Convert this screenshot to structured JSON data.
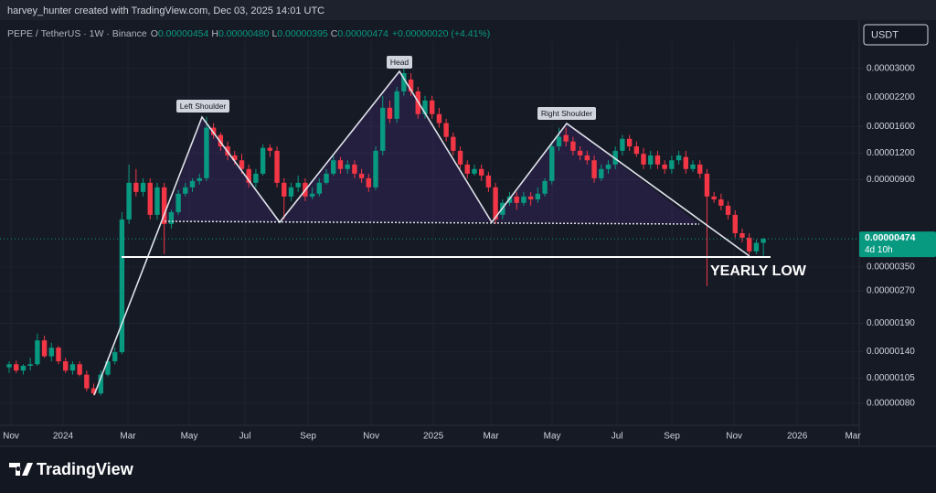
{
  "header": {
    "credit": "harvey_hunter created with TradingView.com, Dec 03, 2025 14:01 UTC",
    "symbol": "PEPE / TetherUS · 1W · Binance",
    "legend": [
      {
        "key": "O",
        "text": "0.00000454"
      },
      {
        "key": "H",
        "text": "0.00000480"
      },
      {
        "key": "L",
        "text": "0.00000395"
      },
      {
        "key": "C",
        "text": "0.00000474"
      }
    ],
    "change": "+0.00000020 (+4.41%)",
    "currency": "USDT"
  },
  "footer": {
    "brand": "TradingView"
  },
  "chart_data": {
    "type": "candlestick",
    "up_color": "#089981",
    "down_color": "#f23645",
    "log_scale": true,
    "grid": true,
    "open": [
      1.18e-06,
      1.22e-06,
      1.14e-06,
      1.2e-06,
      1.22e-06,
      1.58e-06,
      1.33e-06,
      1.46e-06,
      1.26e-06,
      1.14e-06,
      1.22e-06,
      1.09e-06,
      9.4e-07,
      8.9e-07,
      1.09e-06,
      1.26e-06,
      1.39e-06,
      5.85e-06,
      8.7e-06,
      7.88e-06,
      8.7e-06,
      6.15e-06,
      8.28e-06,
      5.57e-06,
      6.33e-06,
      7.73e-06,
      8.28e-06,
      8.87e-06,
      9.14e-06,
      1.58e-05,
      1.46e-05,
      1.29e-05,
      1.17e-05,
      1.11e-05,
      1.01e-05,
      8.7e-06,
      9.6e-06,
      1.27e-05,
      1.23e-05,
      8.7e-06,
      7.5e-06,
      8.28e-06,
      8.7e-06,
      7.5e-06,
      7.73e-06,
      8.7e-06,
      9.6e-06,
      1.11e-05,
      1.01e-05,
      1.06e-05,
      9.6e-06,
      9.14e-06,
      8.28e-06,
      1.23e-05,
      1.96e-05,
      1.74e-05,
      2.34e-05,
      2.66e-05,
      2.34e-05,
      1.83e-05,
      2.12e-05,
      1.83e-05,
      1.66e-05,
      1.43e-05,
      1.23e-05,
      1.06e-05,
      9.6e-06,
      1.01e-05,
      9.41e-06,
      8.28e-06,
      6.15e-06,
      7e-06,
      7.5e-06,
      7e-06,
      7.5e-06,
      7.27e-06,
      7.73e-06,
      8.87e-06,
      1.29e-05,
      1.46e-05,
      1.36e-05,
      1.23e-05,
      1.17e-05,
      1.11e-05,
      9.14e-06,
      1.01e-05,
      1.06e-05,
      1.23e-05,
      1.4e-05,
      1.29e-05,
      1.19e-05,
      1.06e-05,
      1.17e-05,
      1.06e-05,
      1.01e-05,
      1.11e-05,
      1.15e-05,
      1.01e-05,
      1.06e-05,
      9.6e-06,
      7.5e-06,
      7.27e-06,
      6.79e-06,
      6.15e-06,
      5.04e-06,
      4.8e-06,
      4.14e-06,
      4.54e-06
    ],
    "high": [
      1.26e-06,
      1.27e-06,
      1.22e-06,
      1.31e-06,
      1.7e-06,
      1.66e-06,
      1.54e-06,
      1.49e-06,
      1.31e-06,
      1.26e-06,
      1.26e-06,
      1.14e-06,
      9.9e-07,
      1.14e-06,
      1.31e-06,
      1.46e-06,
      6.33e-06,
      1.06e-05,
      1.01e-05,
      9.14e-06,
      9.14e-06,
      8.7e-06,
      8.7e-06,
      6.5e-06,
      8.04e-06,
      8.7e-06,
      9.14e-06,
      9.6e-06,
      1.78e-05,
      1.66e-05,
      1.5e-05,
      1.36e-05,
      1.23e-05,
      1.19e-05,
      1.06e-05,
      1.01e-05,
      1.32e-05,
      1.32e-05,
      1.29e-05,
      9.14e-06,
      8.7e-06,
      9.41e-06,
      9.14e-06,
      8.28e-06,
      9.14e-06,
      1.01e-05,
      1.17e-05,
      1.15e-05,
      1.11e-05,
      1.11e-05,
      1.01e-05,
      9.6e-06,
      1.29e-05,
      2.23e-05,
      2.12e-05,
      2.46e-05,
      3e-05,
      2.85e-05,
      2.46e-05,
      2.23e-05,
      2.23e-05,
      1.96e-05,
      1.74e-05,
      1.5e-05,
      1.29e-05,
      1.11e-05,
      1.06e-05,
      1.06e-05,
      9.8e-06,
      8.7e-06,
      7.27e-06,
      7.88e-06,
      7.88e-06,
      7.88e-06,
      7.88e-06,
      8.28e-06,
      9.14e-06,
      1.36e-05,
      1.58e-05,
      1.58e-05,
      1.43e-05,
      1.29e-05,
      1.23e-05,
      1.17e-05,
      1.06e-05,
      1.11e-05,
      1.29e-05,
      1.46e-05,
      1.46e-05,
      1.36e-05,
      1.27e-05,
      1.23e-05,
      1.23e-05,
      1.11e-05,
      1.17e-05,
      1.23e-05,
      1.23e-05,
      1.11e-05,
      1.11e-05,
      1.01e-05,
      7.88e-06,
      7.73e-06,
      7.13e-06,
      6.46e-06,
      5.3e-06,
      5.04e-06,
      4.71e-06,
      4.8e-06
    ],
    "low": [
      1.11e-06,
      1.11e-06,
      1.09e-06,
      1.14e-06,
      1.2e-06,
      1.31e-06,
      1.26e-06,
      1.22e-06,
      1.11e-06,
      1.09e-06,
      1.07e-06,
      9.1e-07,
      8.7e-07,
      8.7e-07,
      1.07e-06,
      1.22e-06,
      1.36e-06,
      5.57e-06,
      7.5e-06,
      7.5e-06,
      5.85e-06,
      5.85e-06,
      4.02e-06,
      5.3e-06,
      6.15e-06,
      7.5e-06,
      7.88e-06,
      8.53e-06,
      8.87e-06,
      1.4e-05,
      1.23e-05,
      1.11e-05,
      1.06e-05,
      9.6e-06,
      8.28e-06,
      8.28e-06,
      9.41e-06,
      1.15e-05,
      8.28e-06,
      5.85e-06,
      7.13e-06,
      7.88e-06,
      7.13e-06,
      7.27e-06,
      7.5e-06,
      8.53e-06,
      9.41e-06,
      9.6e-06,
      9.6e-06,
      9.14e-06,
      8.7e-06,
      7.88e-06,
      8.04e-06,
      1.17e-05,
      1.66e-05,
      1.66e-05,
      2.23e-05,
      2.23e-05,
      1.74e-05,
      1.74e-05,
      1.74e-05,
      1.58e-05,
      1.36e-05,
      1.17e-05,
      1.01e-05,
      9.14e-06,
      9.41e-06,
      8.87e-06,
      7.88e-06,
      5.57e-06,
      5.85e-06,
      6.79e-06,
      6.5e-06,
      6.79e-06,
      6.79e-06,
      7e-06,
      7.5e-06,
      8.53e-06,
      1.23e-05,
      1.29e-05,
      1.17e-05,
      1.11e-05,
      1.06e-05,
      8.7e-06,
      8.87e-06,
      9.6e-06,
      1.01e-05,
      1.17e-05,
      1.23e-05,
      1.15e-05,
      1.01e-05,
      1.01e-05,
      1.01e-05,
      9.6e-06,
      9.6e-06,
      1.06e-05,
      9.6e-06,
      9.8e-06,
      9.14e-06,
      2.84e-06,
      7e-06,
      6.46e-06,
      5.85e-06,
      4.8e-06,
      4.57e-06,
      4.02e-06,
      4.02e-06,
      3.95e-06
    ],
    "close": [
      1.22e-06,
      1.14e-06,
      1.2e-06,
      1.22e-06,
      1.58e-06,
      1.33e-06,
      1.46e-06,
      1.26e-06,
      1.14e-06,
      1.22e-06,
      1.09e-06,
      9.4e-07,
      8.9e-07,
      1.09e-06,
      1.26e-06,
      1.39e-06,
      5.85e-06,
      8.7e-06,
      7.88e-06,
      8.7e-06,
      6.15e-06,
      8.28e-06,
      5.57e-06,
      6.33e-06,
      7.73e-06,
      8.28e-06,
      8.87e-06,
      9.14e-06,
      1.58e-05,
      1.46e-05,
      1.29e-05,
      1.17e-05,
      1.11e-05,
      1.01e-05,
      8.7e-06,
      9.6e-06,
      1.27e-05,
      1.23e-05,
      8.7e-06,
      7.5e-06,
      8.28e-06,
      8.7e-06,
      7.5e-06,
      7.73e-06,
      8.7e-06,
      9.6e-06,
      1.11e-05,
      1.01e-05,
      1.06e-05,
      9.6e-06,
      9.14e-06,
      8.28e-06,
      1.23e-05,
      1.96e-05,
      1.74e-05,
      2.34e-05,
      2.85e-05,
      2.34e-05,
      1.83e-05,
      2.12e-05,
      1.83e-05,
      1.66e-05,
      1.43e-05,
      1.23e-05,
      1.06e-05,
      9.6e-06,
      1.01e-05,
      9.41e-06,
      8.28e-06,
      5.85e-06,
      7e-06,
      7.5e-06,
      7e-06,
      7.5e-06,
      7.27e-06,
      7.73e-06,
      8.87e-06,
      1.29e-05,
      1.43e-05,
      1.36e-05,
      1.23e-05,
      1.17e-05,
      1.11e-05,
      9.14e-06,
      1.01e-05,
      1.06e-05,
      1.23e-05,
      1.4e-05,
      1.29e-05,
      1.19e-05,
      1.06e-05,
      1.17e-05,
      1.06e-05,
      1.01e-05,
      1.11e-05,
      1.17e-05,
      1.01e-05,
      1.06e-05,
      9.6e-06,
      7.5e-06,
      7.27e-06,
      6.79e-06,
      6.15e-06,
      5.04e-06,
      4.8e-06,
      4.14e-06,
      4.54e-06,
      4.74e-06
    ],
    "ylim": [
      6.3e-07,
      4.03e-05
    ],
    "yticks": [
      {
        "value": 3e-05,
        "label": "0.00003000"
      },
      {
        "value": 2.2e-05,
        "label": "0.00002200"
      },
      {
        "value": 1.6e-05,
        "label": "0.00001600"
      },
      {
        "value": 1.2e-05,
        "label": "0.00001200"
      },
      {
        "value": 9e-06,
        "label": "0.00000900"
      },
      {
        "value": 3.5e-06,
        "label": "0.00000350"
      },
      {
        "value": 2.7e-06,
        "label": "0.00000270"
      },
      {
        "value": 1.9e-06,
        "label": "0.00000190"
      },
      {
        "value": 1.4e-06,
        "label": "0.00000140"
      },
      {
        "value": 1.05e-06,
        "label": "0.00000105"
      },
      {
        "value": 8e-07,
        "label": "0.00000080"
      }
    ],
    "xlim": [
      -1.3,
      120.6
    ],
    "xticks": [
      {
        "value": 0.26,
        "label": "Nov"
      },
      {
        "value": 7.65,
        "label": "2024"
      },
      {
        "value": 16.86,
        "label": "Mar"
      },
      {
        "value": 25.55,
        "label": "May"
      },
      {
        "value": 33.46,
        "label": "Jul"
      },
      {
        "value": 42.41,
        "label": "Sep"
      },
      {
        "value": 51.36,
        "label": "Nov"
      },
      {
        "value": 60.18,
        "label": "2025"
      },
      {
        "value": 68.35,
        "label": "Mar"
      },
      {
        "value": 77.04,
        "label": "May"
      },
      {
        "value": 86.25,
        "label": "Jul"
      },
      {
        "value": 94.03,
        "label": "Sep"
      },
      {
        "value": 102.85,
        "label": "Nov"
      },
      {
        "value": 111.8,
        "label": "2026"
      },
      {
        "value": 119.7,
        "label": "Mar"
      }
    ],
    "last_price": {
      "label": "0.00000474",
      "countdown": "4d 10h"
    },
    "annotations": {
      "left_shoulder": "Left Shoulder",
      "head": "Head",
      "right_shoulder": "Right Shoulder",
      "yearly_low": "YEARLY LOW"
    }
  }
}
